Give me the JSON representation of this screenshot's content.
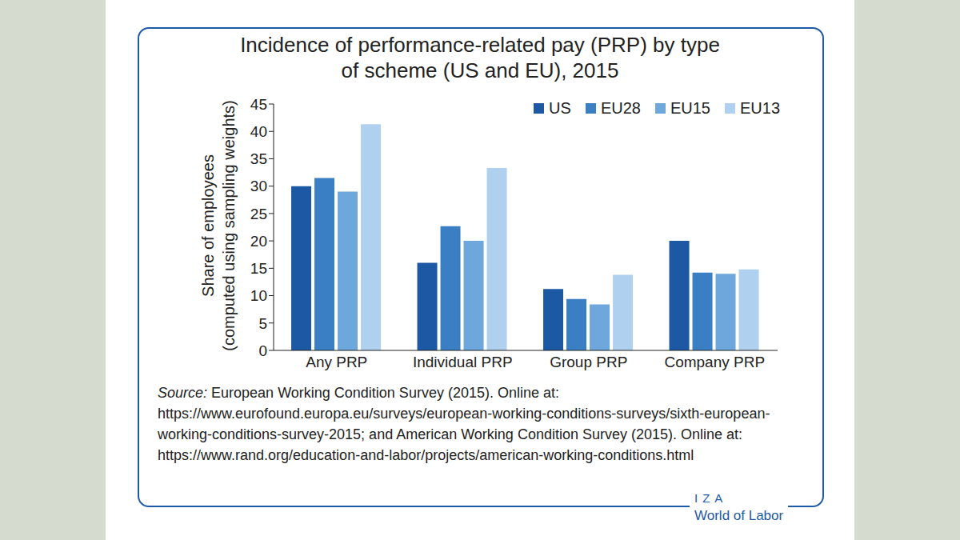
{
  "chart_data": {
    "type": "bar",
    "title": "Incidence of performance-related pay (PRP) by type of scheme (US and EU), 2015",
    "y_label": "Share of employees (computed using sampling weights)",
    "categories": [
      "Any PRP",
      "Individual PRP",
      "Group PRP",
      "Company PRP"
    ],
    "series": [
      {
        "name": "US",
        "color": "#1d58a4",
        "values": [
          30,
          16,
          11.2,
          20
        ]
      },
      {
        "name": "EU28",
        "color": "#3a7fc4",
        "values": [
          31.5,
          22.7,
          9.4,
          14.2
        ]
      },
      {
        "name": "EU15",
        "color": "#6ea7dc",
        "values": [
          29,
          20,
          8.4,
          14
        ]
      },
      {
        "name": "EU13",
        "color": "#afd0ee",
        "values": [
          41.3,
          33.3,
          13.8,
          14.8
        ]
      }
    ],
    "ylim": [
      0,
      45
    ],
    "yticks": [
      0,
      5,
      10,
      15,
      20,
      25,
      30,
      35,
      40,
      45
    ],
    "grid": false,
    "legend": "upper right",
    "annotations": {
      "source_label": "Source:",
      "source_text": "European Working Condition Survey (2015). Online at: https://www.eurofound.europa.eu/surveys/european-working-conditions-surveys/sixth-european-working-conditions-survey-2015; and American Working Condition Survey (2015). Online at: https://www.rand.org/education-and-labor/projects/american-working-conditions.html",
      "logo_top": "IZA",
      "logo_bottom": "World of Labor"
    }
  }
}
